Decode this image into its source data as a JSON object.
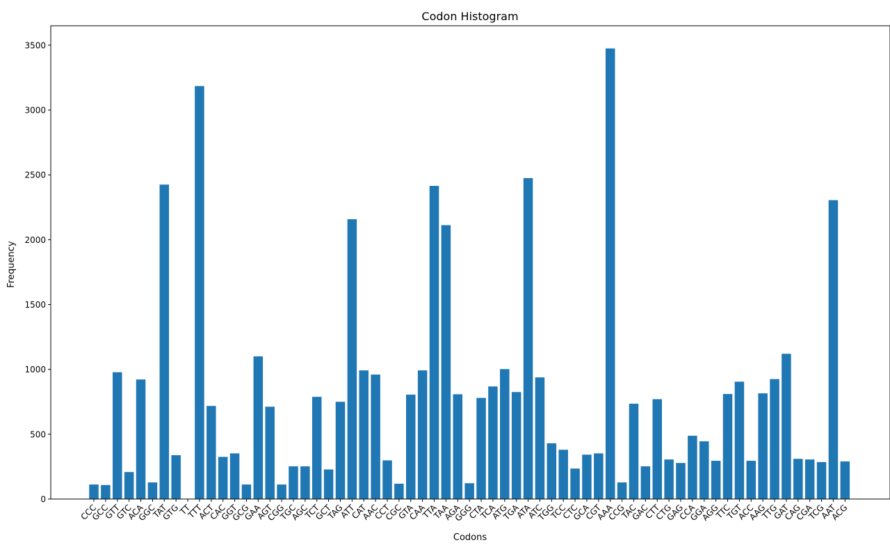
{
  "chart_data": {
    "type": "bar",
    "title": "Codon Histogram",
    "xlabel": "Codons",
    "ylabel": "Frequency",
    "ylim": [
      0,
      3650
    ],
    "yticks": [
      0,
      500,
      1000,
      1500,
      2000,
      2500,
      3000,
      3500
    ],
    "grid": false,
    "bar_color": "#1f77b4",
    "categories": [
      "CCC",
      "GCC",
      "GTT",
      "GTC",
      "ACA",
      "GGC",
      "TAT",
      "GTG",
      "TT",
      "TTT",
      "ACT",
      "CAC",
      "GGT",
      "GCG",
      "GAA",
      "AGT",
      "CGG",
      "TGC",
      "AGC",
      "TCT",
      "GCT",
      "TAG",
      "ATT",
      "CAT",
      "AAC",
      "CCT",
      "CGC",
      "GTA",
      "CAA",
      "TTA",
      "TAA",
      "AGA",
      "GGG",
      "CTA",
      "TCA",
      "ATG",
      "TGA",
      "ATA",
      "ATC",
      "TGG",
      "TCC",
      "CTC",
      "GCA",
      "CGT",
      "AAA",
      "CCG",
      "TAC",
      "GAC",
      "CTT",
      "CTG",
      "GAG",
      "CCA",
      "GGA",
      "AGG",
      "TTC",
      "TGT",
      "ACC",
      "AAG",
      "TTG",
      "GAT",
      "CAG",
      "CGA",
      "TCG",
      "AAT",
      "ACG"
    ],
    "values": [
      112,
      108,
      978,
      208,
      922,
      128,
      2425,
      338,
      0,
      3185,
      718,
      325,
      352,
      112,
      1100,
      712,
      112,
      252,
      252,
      788,
      228,
      750,
      2158,
      992,
      960,
      298,
      118,
      805,
      992,
      2415,
      2112,
      808,
      122,
      780,
      868,
      1002,
      825,
      2475,
      938,
      430,
      380,
      235,
      342,
      352,
      3475,
      128,
      735,
      252,
      770,
      305,
      278,
      488,
      445,
      295,
      810,
      905,
      295,
      815,
      925,
      1120,
      310,
      305,
      285,
      2305,
      290
    ]
  }
}
